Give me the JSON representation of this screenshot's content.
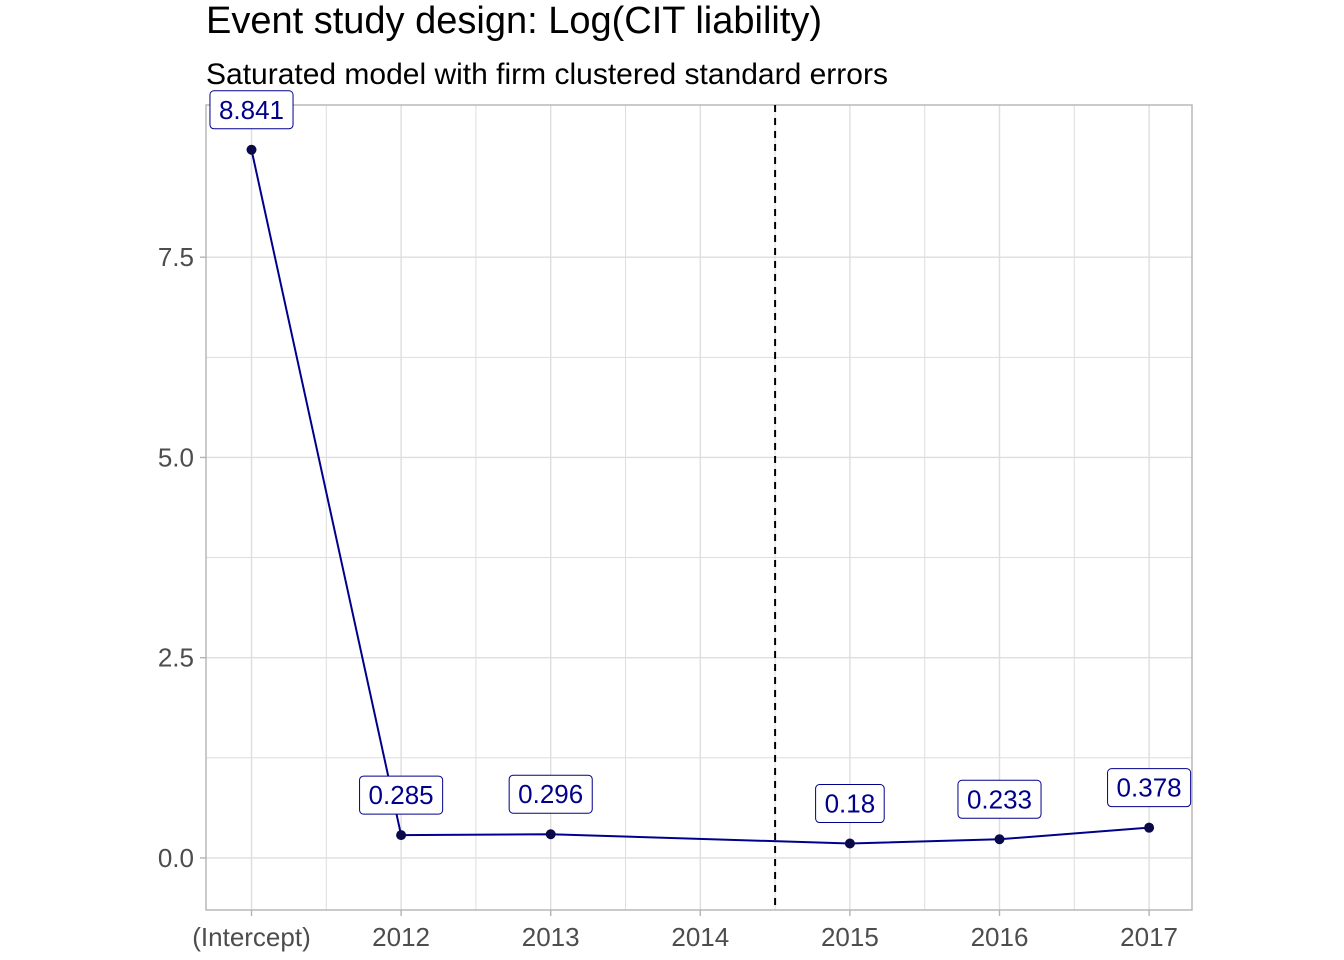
{
  "chart_data": {
    "type": "line",
    "title": "Event study design: Log(CIT liability)",
    "subtitle": "Saturated model with firm clustered standard errors",
    "xlabel": "",
    "ylabel": "",
    "categories": [
      "(Intercept)",
      "2012",
      "2013",
      "2014",
      "2015",
      "2016",
      "2017"
    ],
    "points": [
      {
        "x": "(Intercept)",
        "y": 8.841,
        "label": "8.841"
      },
      {
        "x": "2012",
        "y": 0.285,
        "label": "0.285"
      },
      {
        "x": "2013",
        "y": 0.296,
        "label": "0.296"
      },
      {
        "x": "2015",
        "y": 0.18,
        "label": "0.18"
      },
      {
        "x": "2016",
        "y": 0.233,
        "label": "0.233"
      },
      {
        "x": "2017",
        "y": 0.378,
        "label": "0.378"
      }
    ],
    "ylim": [
      -0.65,
      9.4
    ],
    "yticks": [
      0.0,
      2.5,
      5.0,
      7.5
    ],
    "ytick_labels": [
      "0.0",
      "2.5",
      "5.0",
      "7.5"
    ],
    "vline": {
      "x_between": [
        "2014",
        "2015"
      ],
      "style": "dashed",
      "color": "#000000"
    },
    "grid": true,
    "legend": "none",
    "colors": {
      "line": "#00008B",
      "point": "#0a0a4a",
      "label_text": "#00008B",
      "label_border": "#00008B",
      "grid": "#dedede",
      "panel_border": "#b3b3b3",
      "tick_text": "#4d4d4d"
    }
  }
}
